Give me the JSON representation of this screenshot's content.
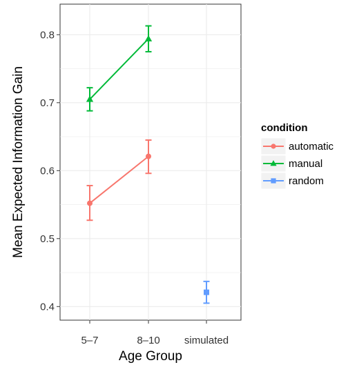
{
  "chart_data": {
    "type": "line",
    "title": "",
    "xlabel": "Age Group",
    "ylabel": "Mean Expected Information Gain",
    "categories": [
      "5–7",
      "8–10",
      "simulated"
    ],
    "yticks": [
      "0.4",
      "0.5",
      "0.6",
      "0.7",
      "0.8"
    ],
    "ylim": [
      0.38,
      0.845
    ],
    "grid": true,
    "legend": {
      "title": "condition",
      "position": "right"
    },
    "series": [
      {
        "name": "automatic",
        "color": "#f8766d",
        "marker": "circle",
        "points": [
          {
            "category": "5–7",
            "y": 0.552,
            "lo": 0.527,
            "hi": 0.578
          },
          {
            "category": "8–10",
            "y": 0.621,
            "lo": 0.596,
            "hi": 0.645
          }
        ]
      },
      {
        "name": "manual",
        "color": "#00ba38",
        "marker": "triangle",
        "points": [
          {
            "category": "5–7",
            "y": 0.705,
            "lo": 0.688,
            "hi": 0.722
          },
          {
            "category": "8–10",
            "y": 0.794,
            "lo": 0.775,
            "hi": 0.813
          }
        ]
      },
      {
        "name": "random",
        "color": "#619cff",
        "marker": "square",
        "points": [
          {
            "category": "simulated",
            "y": 0.421,
            "lo": 0.405,
            "hi": 0.437
          }
        ]
      }
    ]
  }
}
